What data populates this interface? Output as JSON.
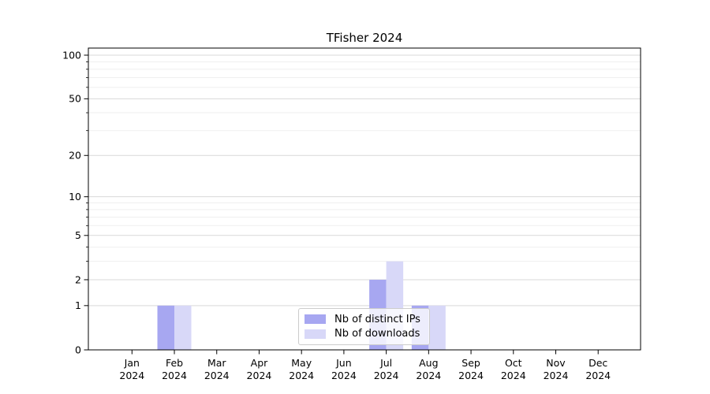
{
  "chart_data": {
    "type": "bar",
    "title": "TFisher 2024",
    "categories": [
      "Jan 2024",
      "Feb 2024",
      "Mar 2024",
      "Apr 2024",
      "May 2024",
      "Jun 2024",
      "Jul 2024",
      "Aug 2024",
      "Sep 2024",
      "Oct 2024",
      "Nov 2024",
      "Dec 2024"
    ],
    "series": [
      {
        "name": "Nb of distinct IPs",
        "color": "#a7a7f1",
        "values": [
          0,
          1,
          0,
          0,
          0,
          0,
          2,
          1,
          0,
          0,
          0,
          0
        ]
      },
      {
        "name": "Nb of downloads",
        "color": "#d8d8f8",
        "values": [
          0,
          1,
          0,
          0,
          0,
          0,
          3,
          1,
          0,
          0,
          0,
          0
        ]
      }
    ],
    "xlabel": "",
    "ylabel": "",
    "yscale": "log1p",
    "ylim": [
      0,
      112
    ],
    "y_major_ticks": [
      0,
      1,
      2,
      5,
      10,
      20,
      50,
      100
    ],
    "y_minor_gridlines": [
      3,
      4,
      6,
      7,
      8,
      9,
      30,
      40,
      60,
      70,
      80,
      90
    ],
    "grid": true,
    "legend_position": "lower center"
  },
  "colors": {
    "major_grid": "#d9d9d9",
    "minor_grid": "#efefef",
    "axis": "#000000",
    "legend_border": "#cccccc",
    "background": "#ffffff"
  }
}
